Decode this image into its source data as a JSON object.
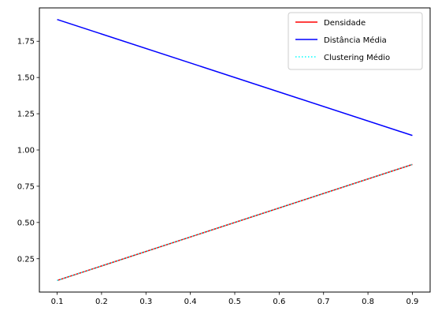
{
  "chart_data": {
    "type": "line",
    "title": "",
    "xlabel": "",
    "ylabel": "",
    "xlim": [
      0.06,
      0.94
    ],
    "ylim": [
      0.02,
      1.98
    ],
    "grid": false,
    "legend_placement": "top-right",
    "x_ticks": [
      0.1,
      0.2,
      0.3,
      0.4,
      0.5,
      0.6,
      0.7,
      0.8,
      0.9
    ],
    "x_tick_labels": [
      "0.1",
      "0.2",
      "0.3",
      "0.4",
      "0.5",
      "0.6",
      "0.7",
      "0.8",
      "0.9"
    ],
    "y_ticks": [
      0.25,
      0.5,
      0.75,
      1.0,
      1.25,
      1.5,
      1.75
    ],
    "y_tick_labels": [
      "0.25",
      "0.50",
      "0.75",
      "1.00",
      "1.25",
      "1.50",
      "1.75"
    ],
    "x": [
      0.1,
      0.9
    ],
    "series": [
      {
        "name": "Densidade",
        "values": [
          0.1,
          0.9
        ],
        "color": "#ff0000",
        "style": "solid"
      },
      {
        "name": "Distância Média",
        "values": [
          1.9,
          1.1
        ],
        "color": "#0000ff",
        "style": "solid"
      },
      {
        "name": "Clustering Médio",
        "values": [
          0.1,
          0.9
        ],
        "color": "#00ffff",
        "style": "dotted"
      }
    ]
  }
}
